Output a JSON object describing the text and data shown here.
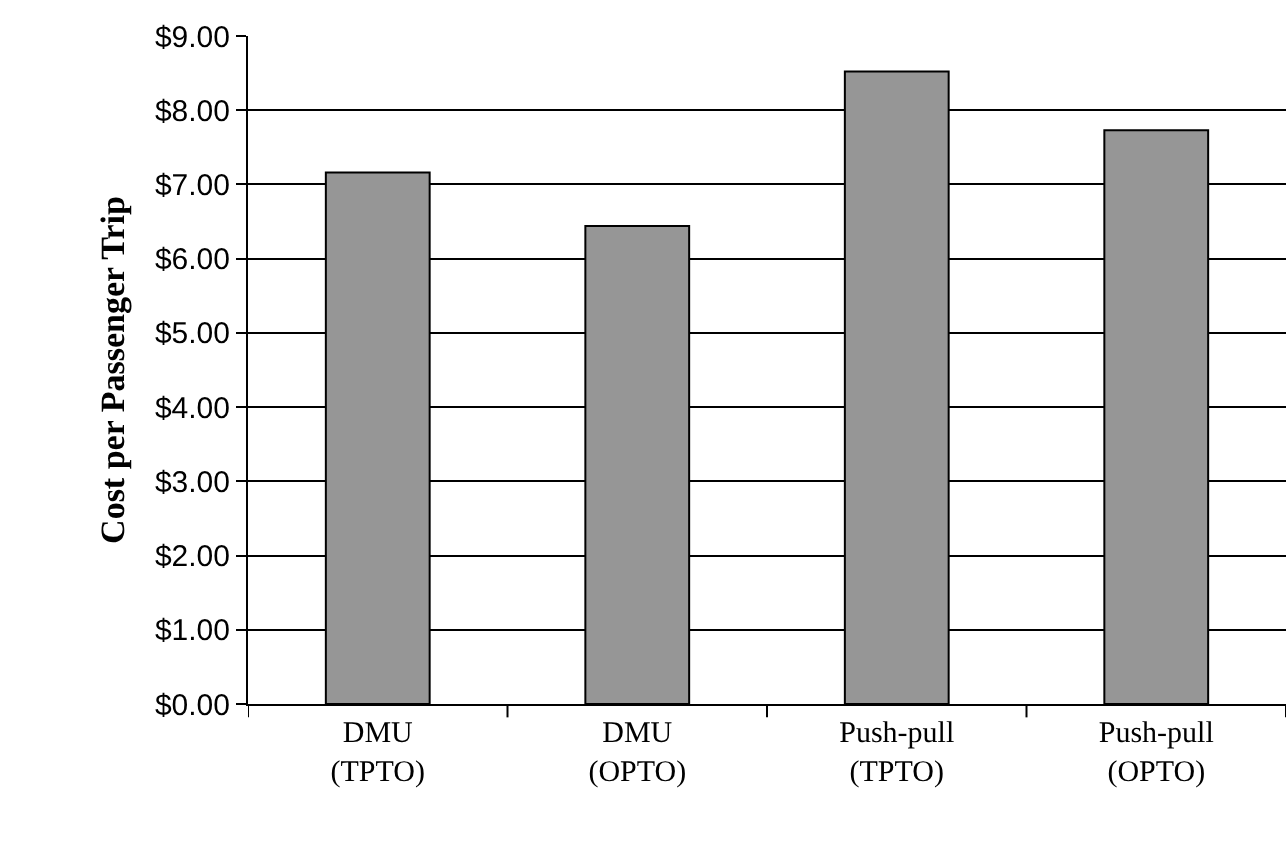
{
  "chart_data": {
    "type": "bar",
    "ylabel": "Cost per Passenger Trip",
    "categories": [
      "DMU\n(TPTO)",
      "DMU\n(OPTO)",
      "Push-pull\n(TPTO)",
      "Push-pull\n(OPTO)"
    ],
    "values": [
      7.16,
      6.44,
      8.52,
      7.73
    ],
    "color": "#969696",
    "ylim": [
      0,
      9
    ],
    "yticks": [
      {
        "value": 0,
        "label": "$0.00"
      },
      {
        "value": 1,
        "label": "$1.00"
      },
      {
        "value": 2,
        "label": "$2.00"
      },
      {
        "value": 3,
        "label": "$3.00"
      },
      {
        "value": 4,
        "label": "$4.00"
      },
      {
        "value": 5,
        "label": "$5.00"
      },
      {
        "value": 6,
        "label": "$6.00"
      },
      {
        "value": 7,
        "label": "$7.00"
      },
      {
        "value": 8,
        "label": "$8.00"
      },
      {
        "value": 9,
        "label": "$9.00"
      }
    ],
    "grid": "y"
  }
}
